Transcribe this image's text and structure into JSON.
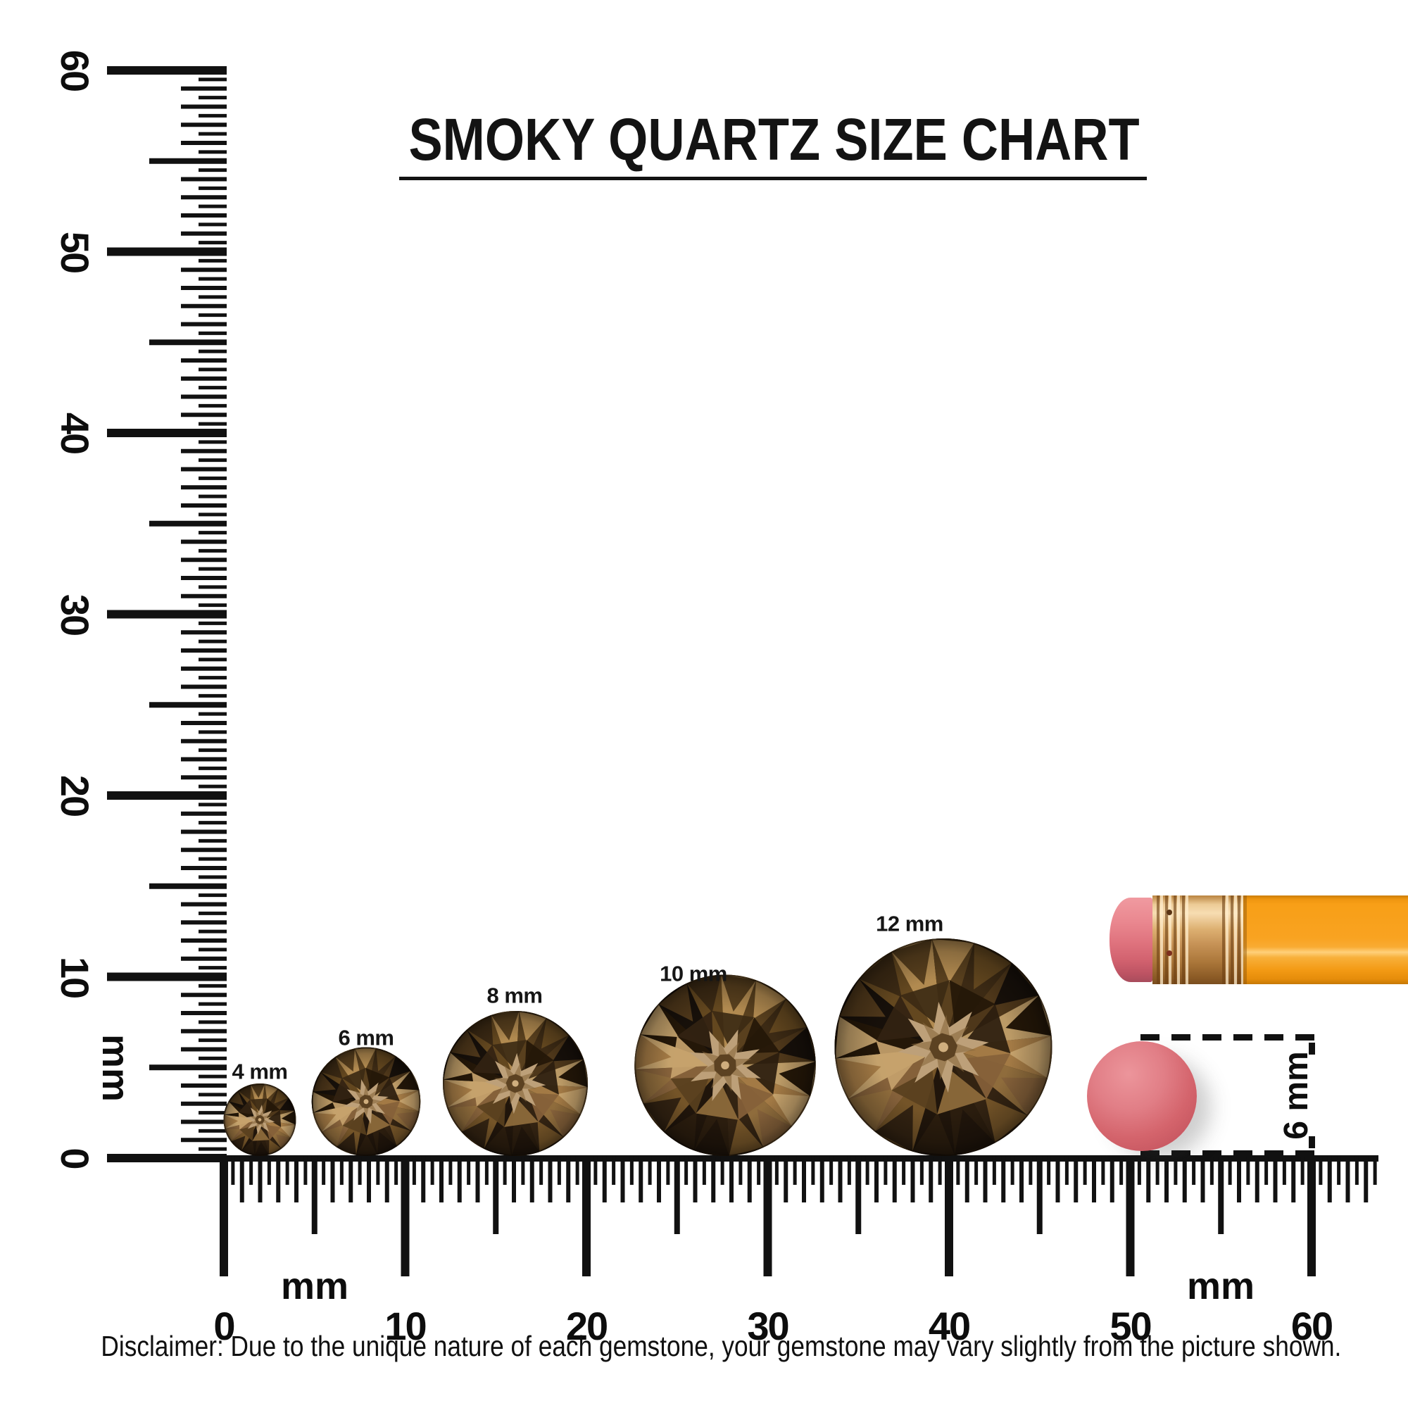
{
  "title": "SMOKY QUARTZ SIZE CHART",
  "rulers": {
    "vertical": {
      "unit_label": "mm",
      "labels": [
        "0",
        "10",
        "20",
        "30",
        "40",
        "50",
        "60"
      ]
    },
    "horizontal": {
      "unit_label_left": "mm",
      "unit_label_right": "mm",
      "labels": [
        "0",
        "10",
        "20",
        "30",
        "40",
        "50",
        "60"
      ]
    }
  },
  "gems": [
    {
      "label": "4 mm",
      "size_mm": 4
    },
    {
      "label": "6 mm",
      "size_mm": 6
    },
    {
      "label": "8 mm",
      "size_mm": 8
    },
    {
      "label": "10 mm",
      "size_mm": 10
    },
    {
      "label": "12 mm",
      "size_mm": 12
    }
  ],
  "reference_objects": {
    "pencil": {
      "eraser_color": "#e07983",
      "ferrule_color": "#d29a5f",
      "body_color": "#f8a01b"
    },
    "eraser_top_view": {
      "diameter_label": "6 mm",
      "diameter_mm": 6,
      "color": "#d5646c"
    }
  },
  "disclaimer": "Disclaimer: Due to the unique nature of each gemstone, your gemstone may vary slightly from the picture shown.",
  "colors": {
    "ink": "#111111",
    "gem_palette": [
      "#17100a",
      "#2b1d0e",
      "#3c2a14",
      "#63471f",
      "#85613a",
      "#a37a45",
      "#c5a26c",
      "#b99a6c"
    ]
  }
}
